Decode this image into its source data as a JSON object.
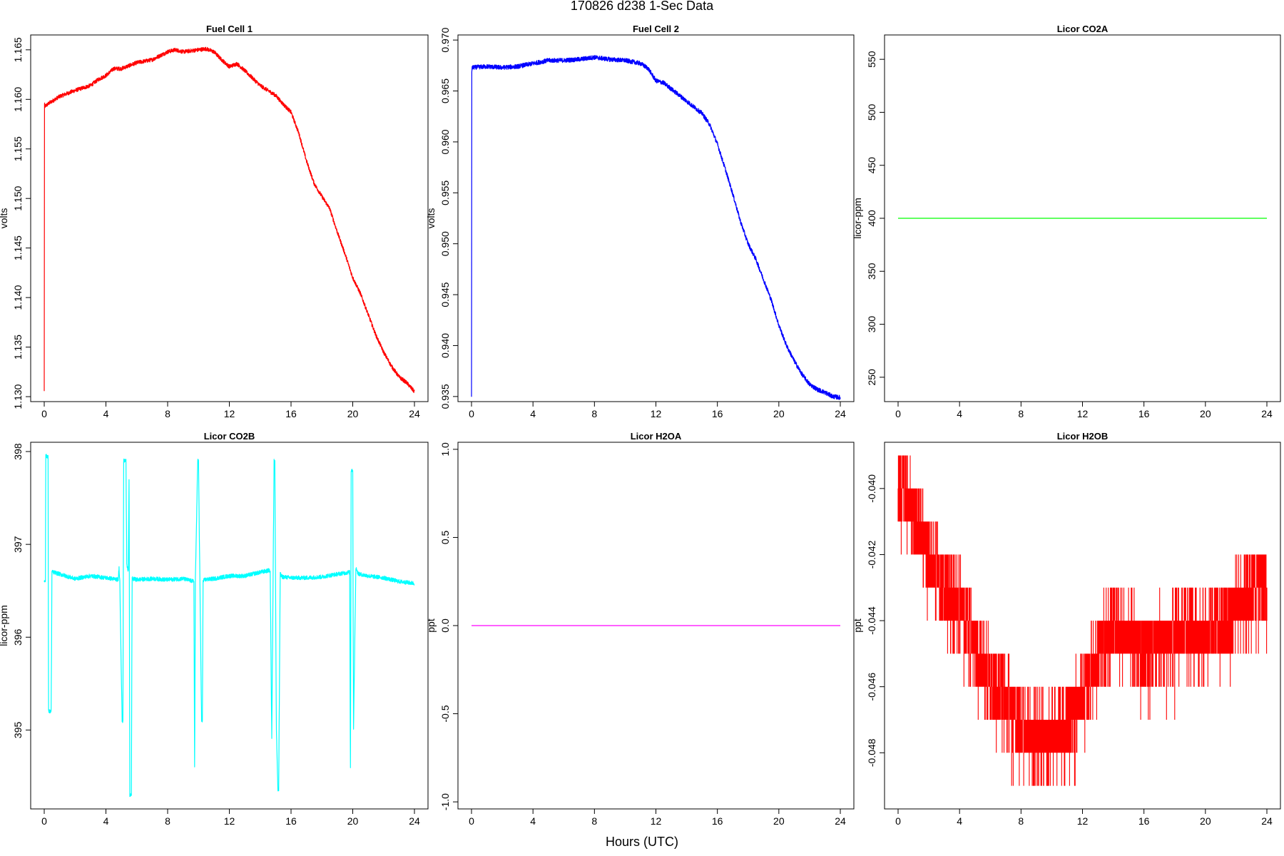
{
  "page": {
    "title": "170826   d238   1-Sec Data",
    "xlabel": "Hours (UTC)"
  },
  "chart_data": [
    {
      "type": "line",
      "title": "Fuel Cell 1",
      "ylabel": "volts",
      "color": "#ff0000",
      "xlim": [
        0,
        24
      ],
      "ylim": [
        1.1295,
        1.1665
      ],
      "xticks": [
        "0",
        "4",
        "8",
        "12",
        "16",
        "20",
        "24"
      ],
      "yticks": [
        "1.130",
        "1.135",
        "1.140",
        "1.145",
        "1.150",
        "1.155",
        "1.160",
        "1.165"
      ],
      "noise": 0.0002,
      "x": [
        0,
        0.02,
        0.05,
        0.3,
        1,
        2,
        3,
        3.5,
        4,
        4.5,
        5,
        6,
        7,
        8,
        8.5,
        9,
        10,
        10.5,
        11,
        11.5,
        12,
        12.5,
        13,
        14,
        15,
        15.5,
        16,
        16.5,
        17,
        17.5,
        18,
        18.5,
        19,
        19.5,
        20,
        20.5,
        21,
        21.5,
        22,
        22.5,
        23,
        23.5,
        24
      ],
      "y": [
        1.1305,
        1.1595,
        1.1593,
        1.1596,
        1.1603,
        1.1609,
        1.1614,
        1.162,
        1.1624,
        1.1631,
        1.1631,
        1.1637,
        1.164,
        1.1648,
        1.165,
        1.1648,
        1.165,
        1.1651,
        1.1648,
        1.164,
        1.1633,
        1.1636,
        1.1629,
        1.1614,
        1.1604,
        1.1595,
        1.1587,
        1.1566,
        1.1538,
        1.1515,
        1.1502,
        1.149,
        1.1466,
        1.1444,
        1.142,
        1.1404,
        1.1383,
        1.1362,
        1.1345,
        1.1331,
        1.132,
        1.1314,
        1.1305
      ]
    },
    {
      "type": "line",
      "title": "Fuel Cell 2",
      "ylabel": "volts",
      "color": "#0000ff",
      "xlim": [
        0,
        24
      ],
      "ylim": [
        0.9345,
        0.9705
      ],
      "xticks": [
        "0",
        "4",
        "8",
        "12",
        "16",
        "20",
        "24"
      ],
      "yticks": [
        "0.935",
        "0.940",
        "0.945",
        "0.950",
        "0.955",
        "0.960",
        "0.965",
        "0.970"
      ],
      "noise": 0.00022,
      "x": [
        0,
        0.02,
        0.05,
        1,
        2,
        3,
        4,
        5,
        6,
        7,
        8,
        9,
        10,
        11,
        11.5,
        12,
        12.5,
        13,
        14,
        15,
        15.5,
        16,
        16.5,
        17,
        17.5,
        18,
        18.5,
        19,
        19.5,
        20,
        20.5,
        21,
        21.5,
        22,
        22.5,
        23,
        23.5,
        24
      ],
      "y": [
        0.935,
        0.967,
        0.9673,
        0.9674,
        0.9673,
        0.9674,
        0.9677,
        0.968,
        0.968,
        0.9681,
        0.9683,
        0.9681,
        0.968,
        0.9677,
        0.9672,
        0.966,
        0.9658,
        0.9652,
        0.964,
        0.9628,
        0.9617,
        0.9598,
        0.9574,
        0.9549,
        0.9522,
        0.95,
        0.9485,
        0.9465,
        0.9445,
        0.942,
        0.94,
        0.9385,
        0.9372,
        0.9362,
        0.9357,
        0.9354,
        0.935,
        0.9349
      ]
    },
    {
      "type": "line",
      "title": "Licor CO2A",
      "ylabel": "licor-ppm",
      "color": "#00ff00",
      "xlim": [
        0,
        24
      ],
      "ylim": [
        227,
        573
      ],
      "xticks": [
        "0",
        "4",
        "8",
        "12",
        "16",
        "20",
        "24"
      ],
      "yticks": [
        "250",
        "300",
        "350",
        "400",
        "450",
        "500",
        "550"
      ],
      "noise": 0,
      "x": [
        0,
        24
      ],
      "y": [
        400,
        400
      ]
    },
    {
      "type": "line",
      "title": "Licor CO2B",
      "ylabel": "licor-ppm",
      "color": "#00ffff",
      "xlim": [
        0,
        24
      ],
      "ylim": [
        394.15,
        398.1
      ],
      "xticks": [
        "0",
        "4",
        "8",
        "12",
        "16",
        "20",
        "24"
      ],
      "yticks": [
        "395",
        "396",
        "397",
        "398"
      ],
      "noise": 0.022,
      "x": [
        0,
        0.08,
        0.1,
        0.25,
        0.28,
        0.45,
        0.5,
        0.6,
        1,
        2,
        3,
        4,
        4.8,
        4.85,
        4.9,
        5.05,
        5.1,
        5.15,
        5.3,
        5.35,
        5.45,
        5.5,
        5.55,
        5.65,
        5.7,
        6,
        7,
        8,
        9,
        9.7,
        9.75,
        9.8,
        9.95,
        10.0,
        10.2,
        10.25,
        10.3,
        10.4,
        11,
        12,
        13,
        14,
        14.6,
        14.65,
        14.75,
        14.9,
        14.95,
        15.05,
        15.15,
        15.2,
        15.3,
        15.35,
        15.45,
        16,
        17,
        18,
        19,
        19.8,
        19.85,
        19.9,
        20.0,
        20.05,
        20.2,
        20.25,
        20.3,
        20.4,
        21,
        22,
        23,
        24
      ],
      "y": [
        396.6,
        396.62,
        397.95,
        397.95,
        395.2,
        395.2,
        396.7,
        396.7,
        396.68,
        396.63,
        396.66,
        396.64,
        396.62,
        396.75,
        396.6,
        395.1,
        395.1,
        397.9,
        397.9,
        396.8,
        396.7,
        397.7,
        394.3,
        394.3,
        396.63,
        396.62,
        396.63,
        396.62,
        396.63,
        396.6,
        394.6,
        396.62,
        397.9,
        397.9,
        395.1,
        395.1,
        396.6,
        396.62,
        396.63,
        396.66,
        396.66,
        396.7,
        396.72,
        396.7,
        394.9,
        397.9,
        397.9,
        395.0,
        394.35,
        394.35,
        396.7,
        396.66,
        396.65,
        396.64,
        396.64,
        396.65,
        396.68,
        396.7,
        394.6,
        397.8,
        397.8,
        395.0,
        396.72,
        396.75,
        396.7,
        396.68,
        396.66,
        396.64,
        396.6,
        396.58
      ]
    },
    {
      "type": "line",
      "title": "Licor H2OA",
      "ylabel": "ppt",
      "color": "#ff00ff",
      "xlim": [
        0,
        24
      ],
      "ylim": [
        -1.04,
        1.04
      ],
      "xticks": [
        "0",
        "4",
        "8",
        "12",
        "16",
        "20",
        "24"
      ],
      "yticks": [
        "-1.0",
        "-0.5",
        "0.0",
        "0.5",
        "1.0"
      ],
      "noise": 0,
      "x": [
        0,
        24
      ],
      "y": [
        0,
        0
      ]
    },
    {
      "type": "line",
      "title": "Licor H2OB",
      "ylabel": "ppt",
      "color": "#ff0000",
      "xlim": [
        0,
        24
      ],
      "ylim": [
        -0.0497,
        -0.0386
      ],
      "xticks": [
        "0",
        "4",
        "8",
        "12",
        "16",
        "20",
        "24"
      ],
      "yticks": [
        "-0.048",
        "-0.046",
        "-0.044",
        "-0.042",
        "-0.040"
      ],
      "step": 0.001,
      "spread": 0.65,
      "x": [
        0,
        0.5,
        1,
        1.5,
        2,
        2.5,
        3,
        3.5,
        4,
        4.5,
        5,
        5.5,
        6,
        6.5,
        7,
        7.5,
        8,
        8.5,
        9,
        9.5,
        10,
        10.5,
        11,
        11.5,
        12,
        12.5,
        13,
        13.5,
        14,
        14.5,
        15,
        15.5,
        16,
        16.5,
        17,
        17.5,
        18,
        18.5,
        19,
        19.5,
        20,
        20.5,
        21,
        21.5,
        22,
        22.5,
        23,
        23.5,
        24
      ],
      "y": [
        -0.0405,
        -0.0405,
        -0.0412,
        -0.0418,
        -0.0424,
        -0.043,
        -0.0434,
        -0.0436,
        -0.044,
        -0.0447,
        -0.0454,
        -0.0458,
        -0.0462,
        -0.0465,
        -0.0468,
        -0.0472,
        -0.0477,
        -0.0479,
        -0.048,
        -0.048,
        -0.0479,
        -0.0478,
        -0.0476,
        -0.0472,
        -0.0466,
        -0.046,
        -0.0454,
        -0.045,
        -0.0447,
        -0.0448,
        -0.0449,
        -0.0452,
        -0.0453,
        -0.0452,
        -0.045,
        -0.0452,
        -0.0449,
        -0.0447,
        -0.0447,
        -0.0448,
        -0.0448,
        -0.0447,
        -0.0445,
        -0.0444,
        -0.044,
        -0.0438,
        -0.0435,
        -0.0433,
        -0.0433
      ]
    }
  ]
}
